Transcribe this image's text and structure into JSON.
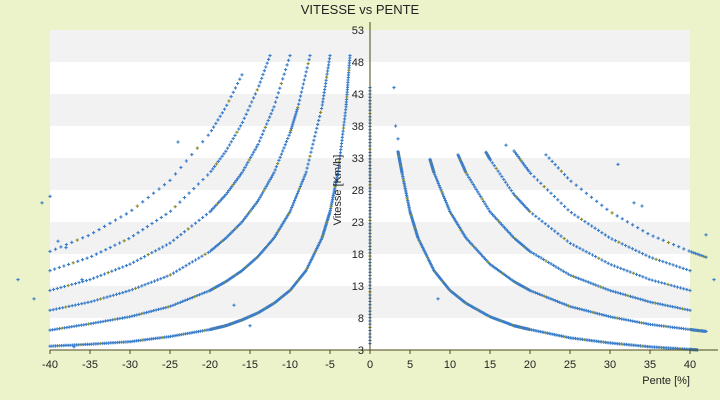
{
  "chart_data": {
    "type": "scatter",
    "title": "VITESSE vs PENTE",
    "xlabel": "Pente [%]",
    "ylabel": "Vitesse [Km/h]",
    "xlim": [
      -40,
      40
    ],
    "ylim": [
      3,
      53
    ],
    "x_ticks": [
      -40,
      -35,
      -30,
      -25,
      -20,
      -15,
      -10,
      -5,
      0,
      5,
      10,
      15,
      20,
      25,
      30,
      35,
      40
    ],
    "y_ticks": [
      3,
      8,
      13,
      18,
      23,
      28,
      33,
      38,
      43,
      48,
      53
    ],
    "grid": "horizontal bands",
    "legend": "none",
    "marker": "+",
    "colors": {
      "background": "#ecf2c9",
      "plot_area": "#ffffff",
      "band": "#f2f2f2",
      "points": "#3a7dc9",
      "points_alt": "#8a8a2a",
      "axis": "#4a4a1a"
    },
    "series": [
      {
        "x": [
          -40,
          -35,
          -30,
          -25,
          -20,
          -18,
          -16,
          -14,
          -12,
          -10,
          -8,
          -6,
          -5,
          -4,
          -3,
          -2.5
        ],
        "y": [
          3.6,
          3.9,
          4.3,
          5.1,
          6.2,
          6.8,
          7.7,
          8.8,
          10.3,
          12.3,
          15.4,
          20.5,
          24.6,
          30.7,
          40.9,
          49
        ],
        "markers": 320
      },
      {
        "x": [
          -40,
          -35,
          -30,
          -25,
          -20,
          -18,
          -16,
          -14,
          -12,
          -10,
          -8,
          -6,
          -5
        ],
        "y": [
          6.1,
          7.1,
          8.2,
          9.8,
          12.3,
          13.7,
          15.4,
          17.6,
          20.5,
          24.6,
          30.7,
          41,
          49
        ],
        "markers": 200
      },
      {
        "x": [
          -40,
          -35,
          -30,
          -25,
          -20,
          -18,
          -16,
          -14,
          -12,
          -10,
          -9,
          -7.5
        ],
        "y": [
          9.2,
          10.5,
          12.3,
          14.7,
          18.4,
          20.5,
          23,
          26.3,
          30.7,
          36.9,
          41,
          49
        ],
        "markers": 140
      },
      {
        "x": [
          -40,
          -35,
          -30,
          -25,
          -20,
          -18,
          -16,
          -14,
          -12,
          -10
        ],
        "y": [
          12.3,
          14,
          16.4,
          19.7,
          24.6,
          27.3,
          30.7,
          35.1,
          41,
          49
        ],
        "markers": 100
      },
      {
        "x": [
          -40,
          -35,
          -30,
          -25,
          -20,
          -18,
          -16,
          -14,
          -12.5
        ],
        "y": [
          15.4,
          17.5,
          20.5,
          24.6,
          30.7,
          34.1,
          38.4,
          43.9,
          49
        ],
        "markers": 70
      },
      {
        "x": [
          -40,
          -35,
          -30,
          -25,
          -20,
          -18,
          -16
        ],
        "y": [
          18.4,
          21,
          24.6,
          29.5,
          36.9,
          41,
          46
        ],
        "markers": 45
      },
      {
        "x": [
          3.5,
          4,
          5,
          6,
          8,
          10,
          12,
          15,
          18,
          20,
          25,
          30,
          35,
          40,
          42
        ],
        "y": [
          34,
          30.7,
          24.6,
          20.5,
          15.4,
          12.3,
          10.3,
          8.2,
          6.8,
          6.2,
          4.9,
          4.1,
          3.5,
          3.1,
          2.9
        ],
        "markers": 320
      },
      {
        "x": [
          7.5,
          8,
          10,
          12,
          15,
          18,
          20,
          25,
          30,
          35,
          40,
          42
        ],
        "y": [
          32.8,
          30.7,
          24.6,
          20.5,
          16.4,
          13.7,
          12.3,
          9.8,
          8.2,
          7,
          6.2,
          5.9
        ],
        "markers": 200
      },
      {
        "x": [
          11,
          12,
          15,
          18,
          20,
          25,
          30,
          35,
          40
        ],
        "y": [
          33.5,
          30.7,
          24.6,
          20.5,
          18.4,
          14.7,
          12.3,
          10.5,
          9.2
        ],
        "markers": 130
      },
      {
        "x": [
          14.5,
          15,
          18,
          20,
          25,
          30,
          35,
          40
        ],
        "y": [
          33.9,
          32.8,
          27.3,
          24.6,
          19.7,
          16.4,
          14,
          12.3
        ],
        "markers": 90
      },
      {
        "x": [
          18,
          20,
          25,
          30,
          35,
          40
        ],
        "y": [
          34.1,
          30.7,
          24.6,
          20.5,
          17.5,
          15.4
        ],
        "markers": 60
      },
      {
        "x": [
          22,
          25,
          30,
          35,
          40,
          42
        ],
        "y": [
          33.5,
          29.5,
          24.6,
          21,
          18.4,
          17.5
        ],
        "markers": 40
      },
      {
        "x": [
          0,
          0,
          0,
          0,
          0,
          0,
          0,
          0,
          0,
          0,
          0
        ],
        "y": [
          4,
          8,
          12,
          16,
          20,
          24,
          28,
          32,
          36,
          40,
          44
        ],
        "markers": 80
      },
      {
        "x": [
          -44,
          -42,
          -41,
          -40,
          -39,
          -38,
          -37,
          -36,
          -24,
          -17,
          -15,
          3,
          3.2,
          3.5,
          8.5,
          17,
          31,
          33,
          34,
          42,
          43
        ],
        "y": [
          14,
          11,
          26,
          27,
          20,
          19,
          3.5,
          14,
          35.5,
          10,
          6.8,
          44,
          38,
          36,
          11,
          35,
          32,
          26,
          25.5,
          21,
          14
        ],
        "markers": 1
      }
    ]
  }
}
